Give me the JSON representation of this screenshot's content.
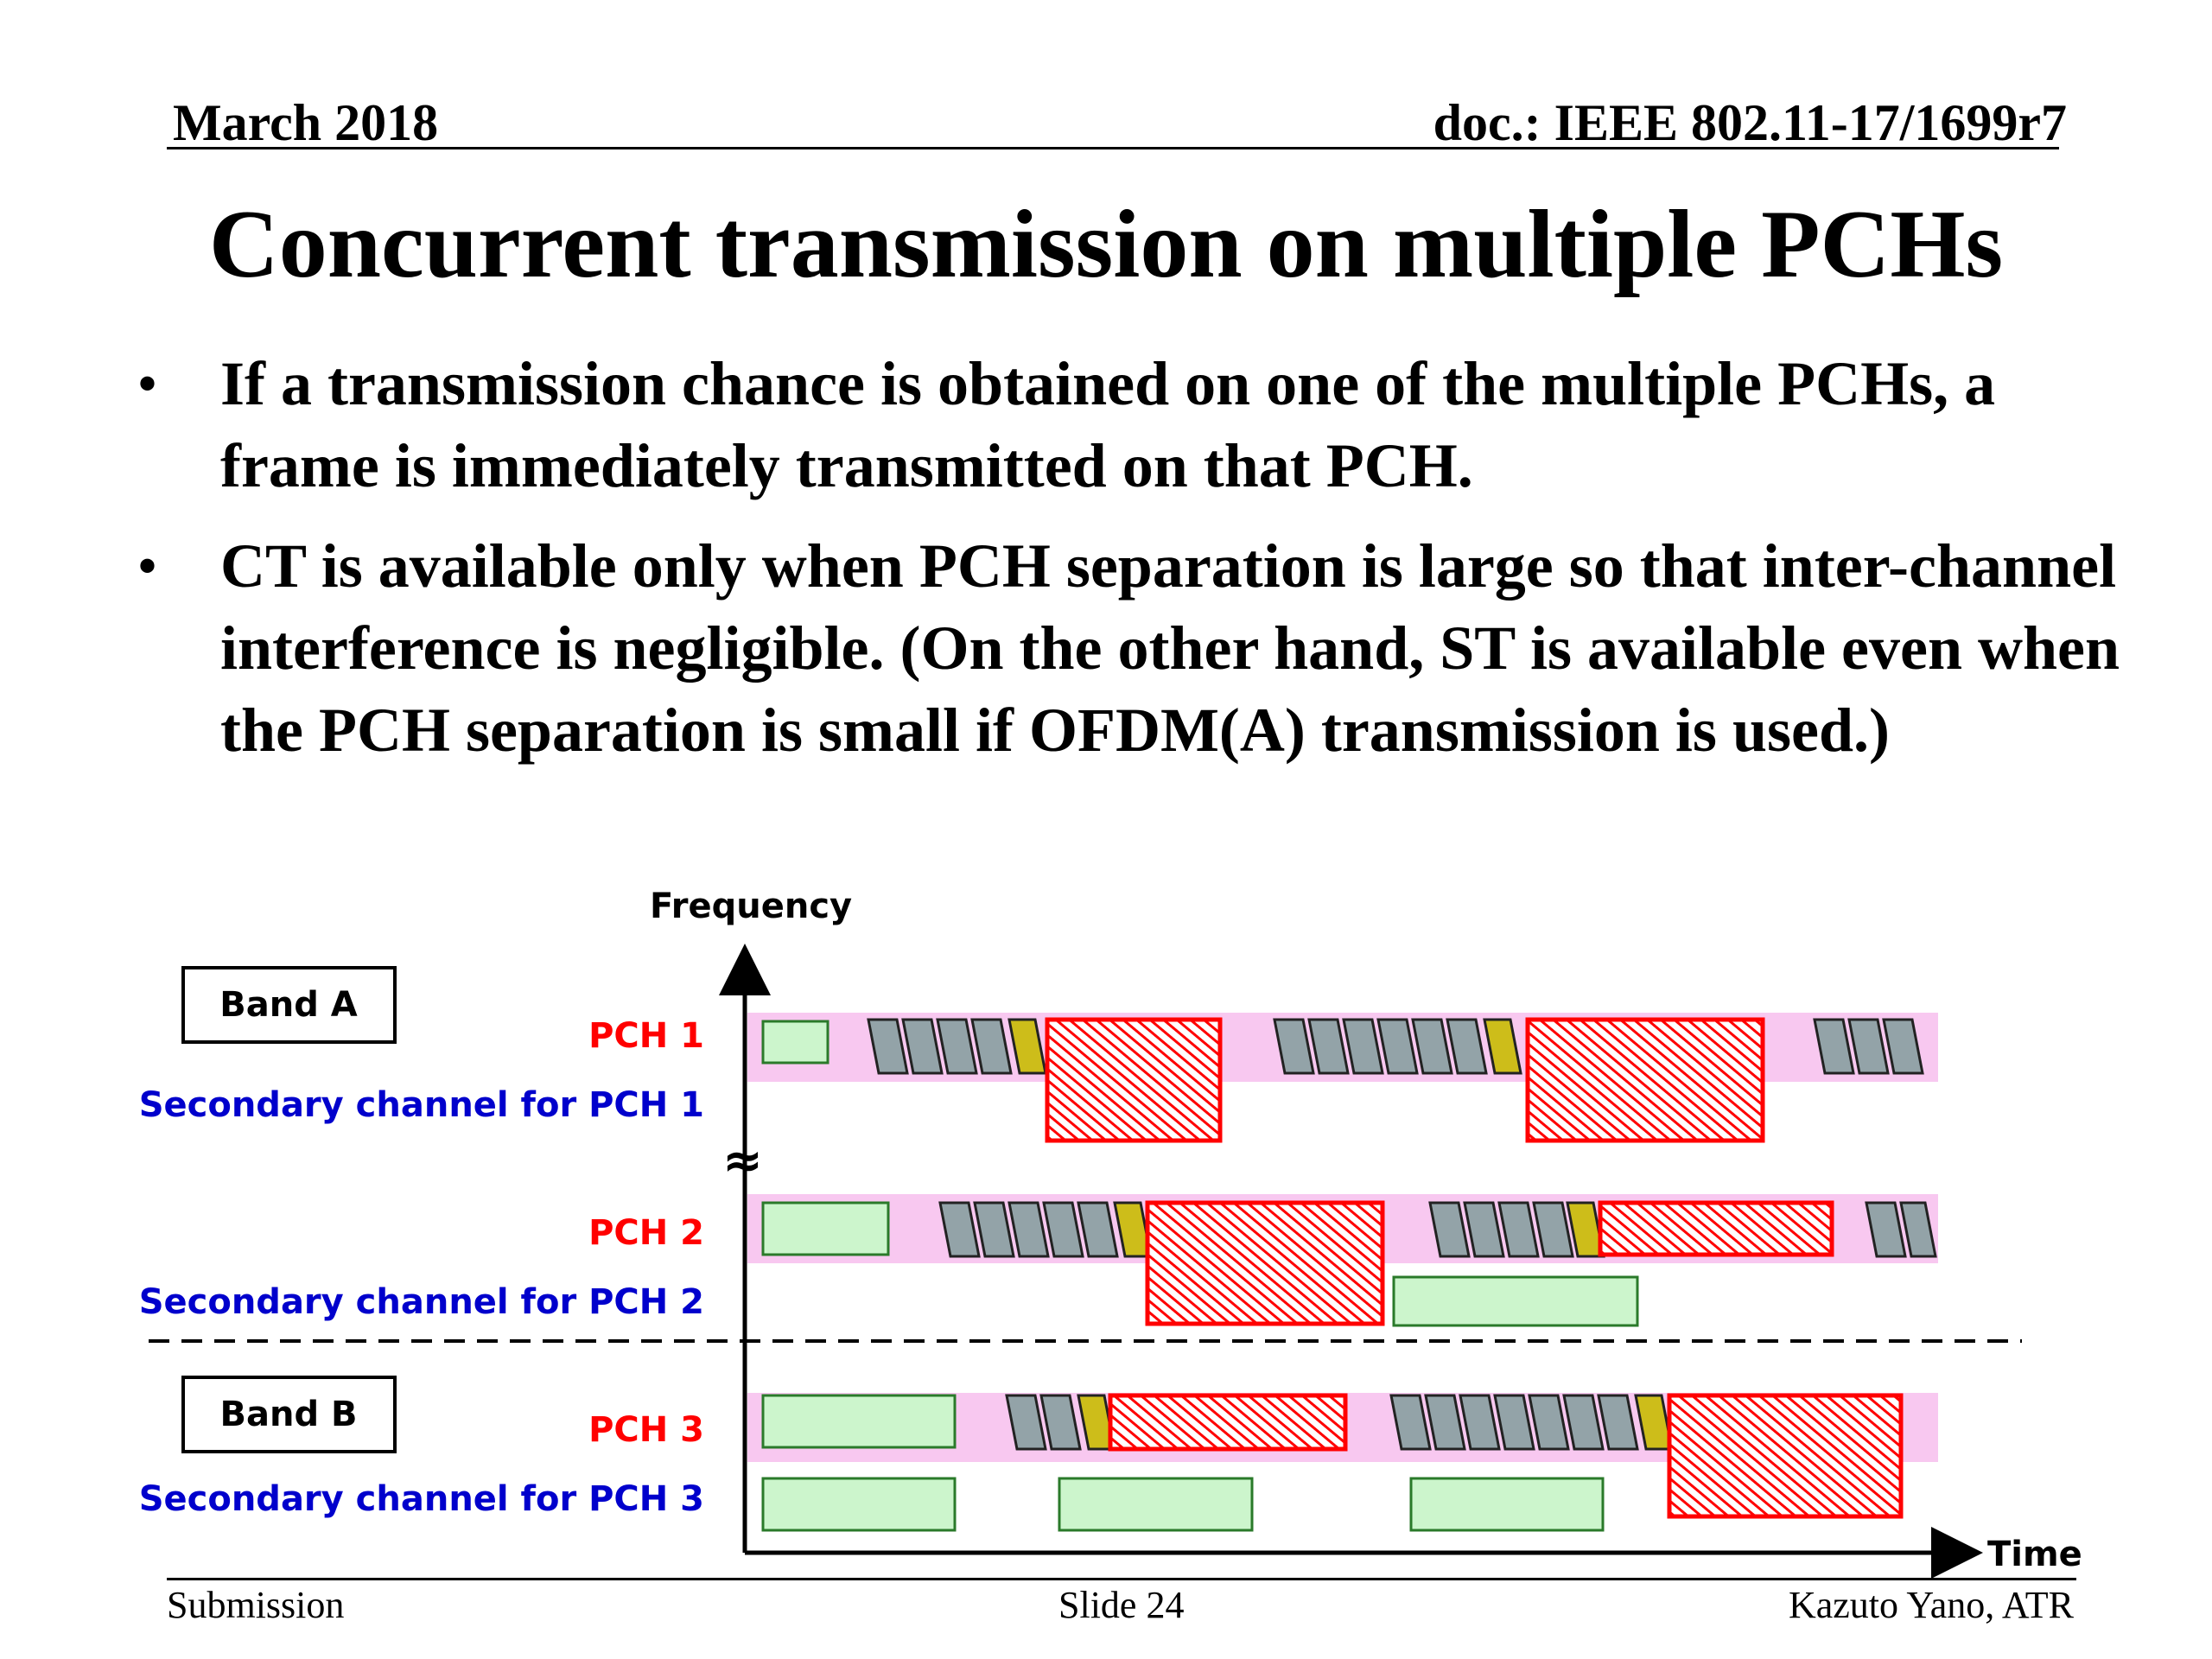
{
  "header": {
    "date": "March 2018",
    "doc_id": "doc.: IEEE 802.11-17/1699r7"
  },
  "title": "Concurrent transmission on multiple PCHs",
  "bullets": [
    "If a transmission chance is obtained on one of the multiple PCHs, a frame is immediately transmitted on that PCH.",
    "CT is available only when PCH separation is large so that inter-channel interference is negligible. (On the other hand, ST is available even when the PCH separation is small if OFDM(A) transmission is used.)"
  ],
  "bullet_glyph": "•",
  "diagram": {
    "axis_y_label": "Frequency",
    "axis_x_label": "Time",
    "break_symbol": "≈",
    "band_a": "Band A",
    "band_b": "Band B",
    "pch1": "PCH 1",
    "sec1": "Secondary channel for PCH 1",
    "pch2": "PCH 2",
    "sec2": "Secondary channel for PCH 2",
    "pch3": "PCH 3",
    "sec3": "Secondary channel for PCH 3",
    "colors": {
      "pch_label": "#ff0000",
      "secondary_label": "#0000cc",
      "channel_band": "#f8c8f0",
      "idle_frame": "#ccf5cc",
      "backoff_slot": "#93a3a8",
      "sensing_slot": "#cdbd1a",
      "transmission": "#ff0000"
    }
  },
  "footer": {
    "left": "Submission",
    "center": "Slide 24",
    "right": "Kazuto Yano, ATR"
  }
}
